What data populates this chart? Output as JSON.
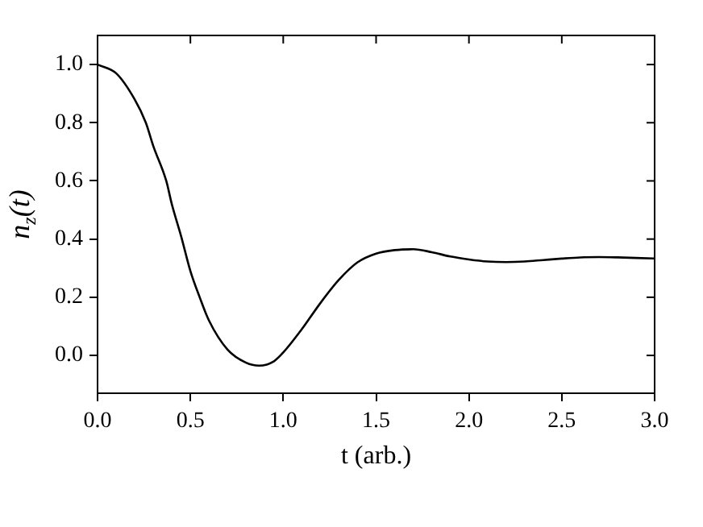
{
  "chart_data": {
    "type": "line",
    "xlabel": "t (arb.)",
    "ylabel": "n$_{z}$(t)",
    "x": [
      0,
      0.1,
      0.2,
      0.26,
      0.3,
      0.37,
      0.4,
      0.45,
      0.5,
      0.55,
      0.6,
      0.7,
      0.8,
      0.87,
      0.95,
      1.0,
      1.1,
      1.2,
      1.3,
      1.4,
      1.5,
      1.6,
      1.7,
      1.8,
      1.9,
      2.0,
      2.1,
      2.2,
      2.3,
      2.4,
      2.5,
      2.6,
      2.7,
      2.8,
      2.9,
      3.0
    ],
    "series": [
      {
        "color": "#000000",
        "values": [
          1.0,
          0.97,
          0.88,
          0.8,
          0.72,
          0.6,
          0.52,
          0.41,
          0.29,
          0.2,
          0.12,
          0.02,
          -0.025,
          -0.035,
          -0.02,
          0.01,
          0.09,
          0.18,
          0.26,
          0.32,
          0.35,
          0.362,
          0.365,
          0.355,
          0.34,
          0.33,
          0.323,
          0.321,
          0.323,
          0.328,
          0.333,
          0.337,
          0.338,
          0.337,
          0.335,
          0.333
        ]
      }
    ],
    "xlim": [
      0,
      3
    ],
    "ylim": [
      -0.13,
      1.1
    ],
    "xticks": [
      {
        "value": 0,
        "label": "0.0"
      },
      {
        "value": 0.5,
        "label": "0.5"
      },
      {
        "value": 1,
        "label": "1.0"
      },
      {
        "value": 1.5,
        "label": "1.5"
      },
      {
        "value": 2,
        "label": "2.0"
      },
      {
        "value": 2.5,
        "label": "2.5"
      },
      {
        "value": 3,
        "label": "3.0"
      }
    ],
    "yticks": [
      {
        "value": 0,
        "label": "0.0"
      },
      {
        "value": 0.2,
        "label": "0.2"
      },
      {
        "value": 0.4,
        "label": "0.4"
      },
      {
        "value": 0.6,
        "label": "0.6"
      },
      {
        "value": 0.8,
        "label": "0.8"
      },
      {
        "value": 1,
        "label": "1.0"
      }
    ],
    "grid": false,
    "legend": false,
    "marker": "none",
    "line_style": "solid"
  }
}
